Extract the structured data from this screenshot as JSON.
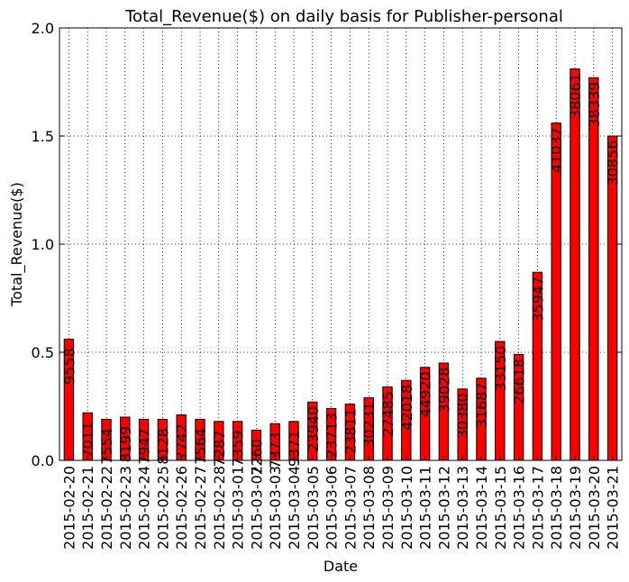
{
  "chart_data": {
    "type": "bar",
    "title": "Total_Revenue($) on daily basis for Publisher-personal",
    "xlabel": "Date",
    "ylabel": "Total_Revenue($)",
    "ylim": [
      0,
      2.0
    ],
    "yticks": [
      "0.0",
      "0.5",
      "1.0",
      "1.5",
      "2.0"
    ],
    "grid": true,
    "bar_color": "#ff0000",
    "categories": [
      "2015-02-20",
      "2015-02-21",
      "2015-02-22",
      "2015-02-23",
      "2015-02-24",
      "2015-02-25",
      "2015-02-26",
      "2015-02-27",
      "2015-02-28",
      "2015-03-01",
      "2015-03-02",
      "2015-03-03",
      "2015-03-04",
      "2015-03-05",
      "2015-03-06",
      "2015-03-07",
      "2015-03-08",
      "2015-03-09",
      "2015-03-10",
      "2015-03-11",
      "2015-03-12",
      "2015-03-13",
      "2015-03-14",
      "2015-03-15",
      "2015-03-16",
      "2015-03-17",
      "2015-03-18",
      "2015-03-19",
      "2015-03-20",
      "2015-03-21"
    ],
    "values": [
      0.56,
      0.22,
      0.19,
      0.2,
      0.19,
      0.19,
      0.21,
      0.19,
      0.18,
      0.18,
      0.14,
      0.17,
      0.18,
      0.27,
      0.24,
      0.26,
      0.29,
      0.34,
      0.37,
      0.43,
      0.45,
      0.33,
      0.38,
      0.55,
      0.49,
      0.87,
      1.56,
      1.81,
      1.77,
      1.5
    ],
    "data_labels": [
      "9558",
      "7011",
      "7554",
      "8199",
      "7947",
      "8128",
      "7742",
      "7564",
      "7287",
      "7359",
      "7260",
      "7373",
      "9371",
      "23940",
      "23713",
      "23811",
      "30231",
      "27485",
      "42018",
      "44920",
      "39028",
      "30380",
      "31687",
      "33150",
      "26618",
      "35947",
      "41037",
      "38061",
      "38339",
      "30856"
    ]
  }
}
